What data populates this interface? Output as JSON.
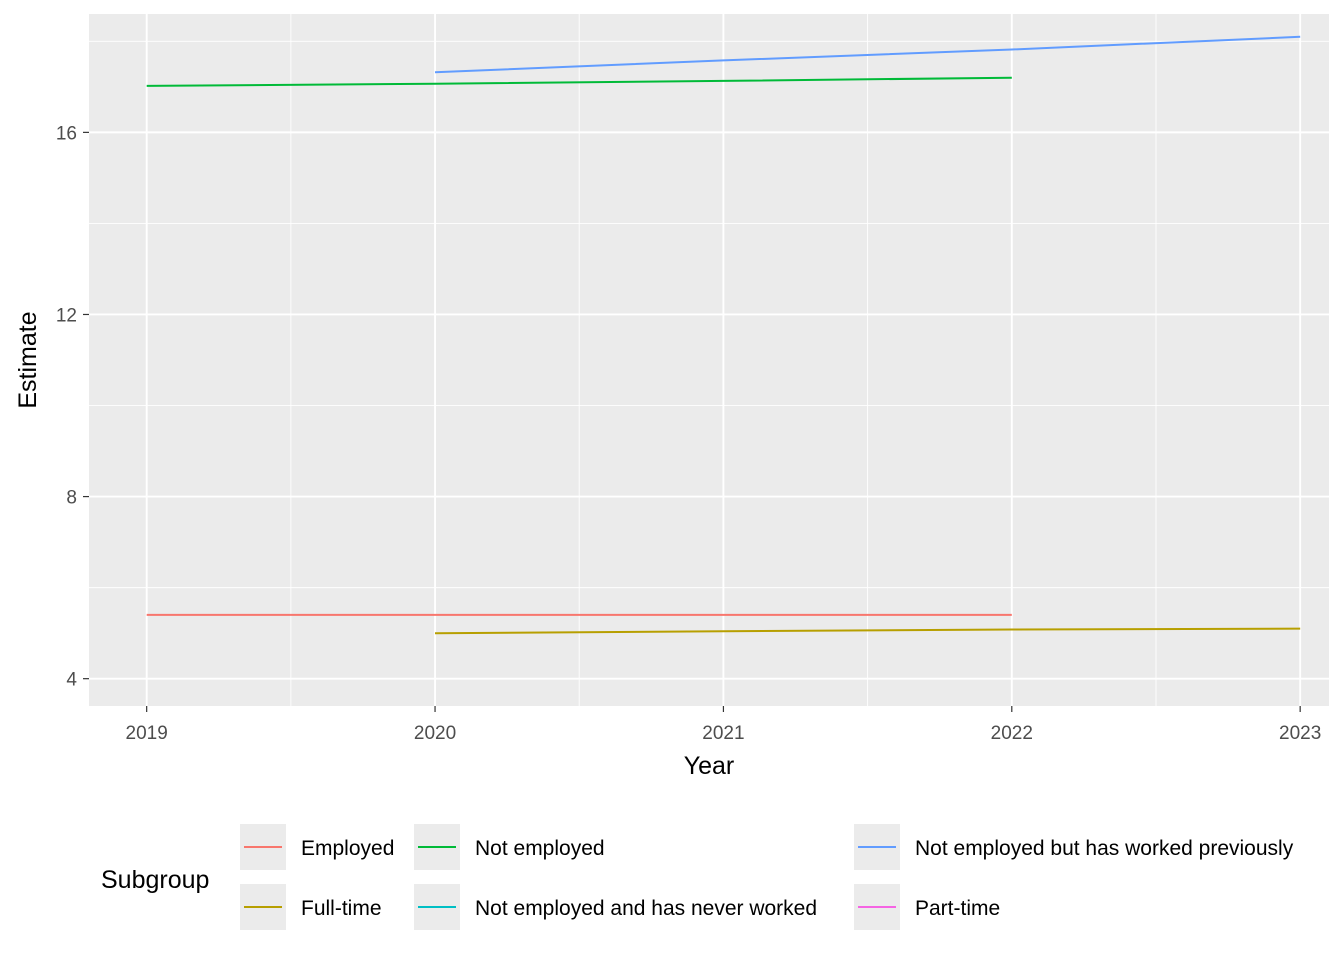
{
  "chart_data": {
    "type": "line",
    "xlabel": "Year",
    "ylabel": "Estimate",
    "x_ticks": [
      "2019",
      "2020",
      "2021",
      "2022",
      "2023"
    ],
    "y_ticks": [
      "4",
      "8",
      "12",
      "16"
    ],
    "xlim": [
      2018.8,
      2023.1
    ],
    "ylim": [
      3.4,
      18.6
    ],
    "grid": true,
    "legend": {
      "title": "Subgroup",
      "placement": "bottom",
      "entries": [
        {
          "name": "Employed",
          "color": "#F8766D"
        },
        {
          "name": "Full-time",
          "color": "#B79F00"
        },
        {
          "name": "Not employed",
          "color": "#00BA38"
        },
        {
          "name": "Not employed and has never worked",
          "color": "#00BFC4"
        },
        {
          "name": "Not employed but has worked previously",
          "color": "#619CFF"
        },
        {
          "name": "Part-time",
          "color": "#F564E3"
        }
      ]
    },
    "series": [
      {
        "name": "Employed",
        "color": "#F8766D",
        "x": [
          2019,
          2020,
          2021,
          2022
        ],
        "y": [
          5.4,
          5.4,
          5.4,
          5.4
        ]
      },
      {
        "name": "Full-time",
        "color": "#B79F00",
        "x": [
          2020,
          2021,
          2022,
          2023
        ],
        "y": [
          5.0,
          5.04,
          5.08,
          5.1
        ]
      },
      {
        "name": "Not employed",
        "color": "#00BA38",
        "x": [
          2019,
          2020,
          2021,
          2022
        ],
        "y": [
          17.02,
          17.07,
          17.13,
          17.2
        ]
      },
      {
        "name": "Not employed but has worked previously",
        "color": "#619CFF",
        "x": [
          2020,
          2021,
          2022,
          2023
        ],
        "y": [
          17.32,
          17.58,
          17.82,
          18.1
        ]
      }
    ]
  }
}
